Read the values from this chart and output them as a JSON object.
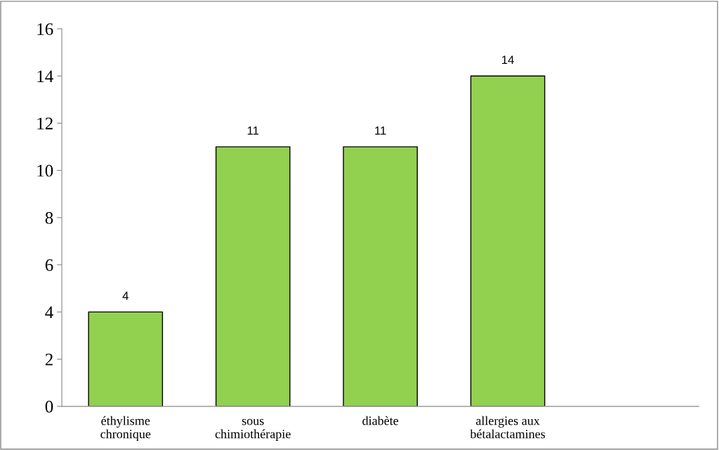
{
  "chart_data": {
    "type": "bar",
    "categories": [
      "éthylisme\nchronique",
      "sous\nchimiothérapie",
      "diabète",
      "allergies aux\nbétalactamines",
      null
    ],
    "values": [
      4,
      11,
      11,
      14,
      null
    ],
    "color": "#92d050",
    "ylim": [
      0,
      16
    ],
    "yticks": [
      0,
      2,
      4,
      6,
      8,
      10,
      12,
      14,
      16
    ],
    "data_labels": true,
    "grid": false,
    "legend": false
  }
}
